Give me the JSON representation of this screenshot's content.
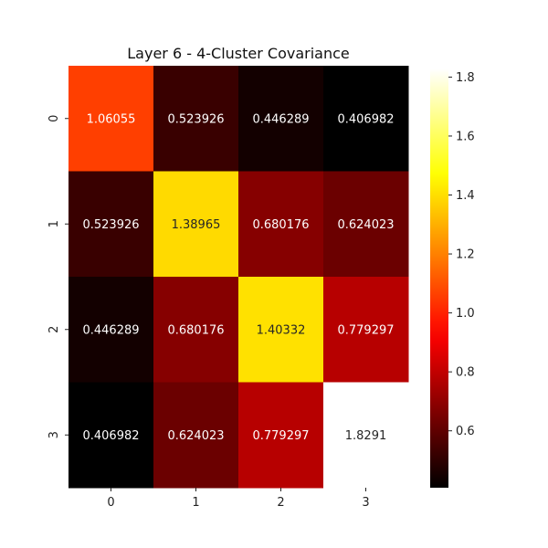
{
  "chart_data": {
    "type": "heatmap",
    "title": "Layer 6 - 4-Cluster Covariance",
    "xlabel": "",
    "ylabel": "",
    "x_categories": [
      "0",
      "1",
      "2",
      "3"
    ],
    "y_categories": [
      "0",
      "1",
      "2",
      "3"
    ],
    "values": [
      [
        1.06055,
        0.523926,
        0.446289,
        0.406982
      ],
      [
        0.523926,
        1.38965,
        0.680176,
        0.624023
      ],
      [
        0.446289,
        0.680176,
        1.40332,
        0.779297
      ],
      [
        0.406982,
        0.624023,
        0.779297,
        1.8291
      ]
    ],
    "cell_labels": [
      [
        "1.06055",
        "0.523926",
        "0.446289",
        "0.406982"
      ],
      [
        "0.523926",
        "1.38965",
        "0.680176",
        "0.624023"
      ],
      [
        "0.446289",
        "0.680176",
        "1.40332",
        "0.779297"
      ],
      [
        "0.406982",
        "0.624023",
        "0.779297",
        "1.8291"
      ]
    ],
    "colormap": "hot",
    "vmin": 0.406982,
    "vmax": 1.8291,
    "colorbar": {
      "ticks": [
        0.6,
        0.8,
        1.0,
        1.2,
        1.4,
        1.6,
        1.8
      ],
      "tick_labels": [
        "0.6",
        "0.8",
        "1.0",
        "1.2",
        "1.4",
        "1.6",
        "1.8"
      ],
      "placement": "right"
    },
    "grid": false
  }
}
